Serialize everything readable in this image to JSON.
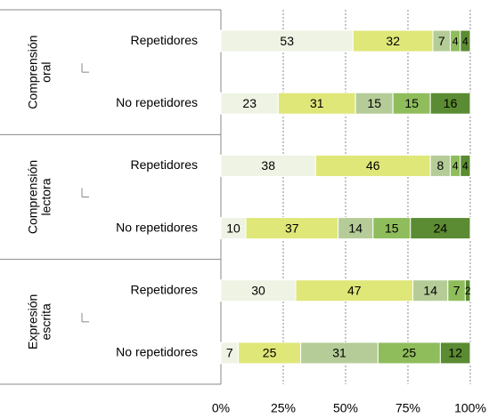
{
  "chart_data": {
    "type": "bar",
    "orientation": "horizontal",
    "stacked": true,
    "groups": [
      [
        "Comprensión",
        "oral"
      ],
      [
        "Comprensión",
        "lectora"
      ],
      [
        "Expresión",
        "escrita"
      ]
    ],
    "categories": [
      "Repetidores",
      "No repetidores",
      "Repetidores",
      "No repetidores",
      "Repetidores",
      "No repetidores"
    ],
    "series": [
      {
        "color": "#eef3e4",
        "label_color": "#000000",
        "values": [
          53,
          23,
          38,
          10,
          30,
          7
        ]
      },
      {
        "color": "#dfe778",
        "label_color": "#000000",
        "values": [
          32,
          31,
          46,
          37,
          47,
          25
        ]
      },
      {
        "color": "#b5cc98",
        "label_color": "#000000",
        "values": [
          7,
          15,
          8,
          14,
          14,
          31
        ]
      },
      {
        "color": "#8fbd5c",
        "label_color": "#ffffff",
        "values": [
          4,
          15,
          4,
          15,
          7,
          25
        ]
      },
      {
        "color": "#5b8b32",
        "label_color": "#ffffff",
        "values": [
          4,
          16,
          4,
          24,
          2,
          12
        ]
      }
    ],
    "xlim": [
      0,
      100
    ],
    "xticks": [
      {
        "value": 0,
        "label": "0%"
      },
      {
        "value": 25,
        "label": "25%"
      },
      {
        "value": 50,
        "label": "50%"
      },
      {
        "value": 75,
        "label": "75%"
      },
      {
        "value": 100,
        "label": "100%"
      }
    ],
    "grid": true
  }
}
